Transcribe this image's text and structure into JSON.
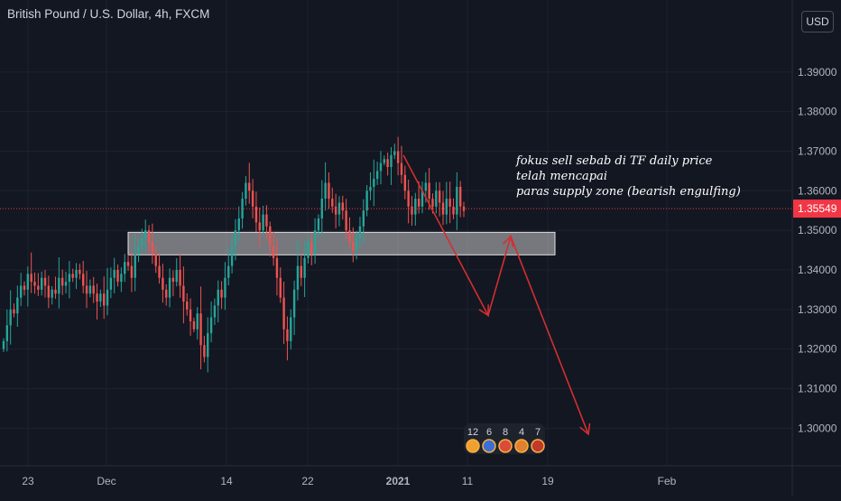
{
  "header": {
    "symbol_title": "British Pound / U.S. Dollar, 4h, FXCM",
    "currency_button": "USD"
  },
  "colors": {
    "background": "#131722",
    "up_candle": "#26a69a",
    "down_candle": "#ef5350",
    "arrow": "#d32f2f",
    "price_tag": "#f23645",
    "grid": "#1e222d"
  },
  "annotation": {
    "lines": [
      "fokus sell sebab di TF daily price",
      "telah mencapai",
      "paras supply zone (bearish engulfing)"
    ]
  },
  "events": {
    "counts": [
      "12",
      "6",
      "8",
      "4",
      "7"
    ]
  },
  "chart_data": {
    "type": "candlestick",
    "symbol": "GBPUSD",
    "timeframe": "4h",
    "y_axis": {
      "ticks": [
        "1.39000",
        "1.38000",
        "1.37000",
        "1.36000",
        "1.35000",
        "1.34000",
        "1.33000",
        "1.32000",
        "1.31000",
        "1.30000"
      ],
      "tick_values": [
        1.39,
        1.38,
        1.37,
        1.36,
        1.35,
        1.34,
        1.33,
        1.32,
        1.31,
        1.3
      ],
      "range": [
        1.2905,
        1.4082
      ]
    },
    "x_axis": {
      "ticks": [
        "23",
        "Dec",
        "14",
        "22",
        "2021",
        "11",
        "19",
        "Feb"
      ]
    },
    "last_price": "1.35549",
    "last_price_value": 1.35549,
    "supply_zone": {
      "low": 1.3438,
      "high": 1.3495
    },
    "projection": [
      1.369,
      1.3285,
      1.3485,
      1.2985
    ],
    "closes": [
      1.322,
      1.326,
      1.33,
      1.329,
      1.333,
      1.336,
      1.335,
      1.339,
      1.337,
      1.336,
      1.335,
      1.338,
      1.336,
      1.333,
      1.335,
      1.334,
      1.338,
      1.336,
      1.337,
      1.339,
      1.338,
      1.34,
      1.339,
      1.336,
      1.334,
      1.336,
      1.334,
      1.332,
      1.334,
      1.331,
      1.335,
      1.338,
      1.34,
      1.337,
      1.339,
      1.342,
      1.341,
      1.338,
      1.344,
      1.346,
      1.348,
      1.35,
      1.347,
      1.344,
      1.341,
      1.338,
      1.335,
      1.333,
      1.338,
      1.337,
      1.34,
      1.336,
      1.332,
      1.33,
      1.327,
      1.325,
      1.329,
      1.321,
      1.318,
      1.324,
      1.328,
      1.331,
      1.335,
      1.333,
      1.338,
      1.341,
      1.346,
      1.35,
      1.353,
      1.358,
      1.362,
      1.36,
      1.356,
      1.352,
      1.35,
      1.354,
      1.351,
      1.346,
      1.343,
      1.338,
      1.333,
      1.325,
      1.322,
      1.328,
      1.335,
      1.341,
      1.338,
      1.343,
      1.347,
      1.344,
      1.35,
      1.353,
      1.358,
      1.362,
      1.358,
      1.356,
      1.354,
      1.357,
      1.355,
      1.35,
      1.347,
      1.345,
      1.348,
      1.351,
      1.355,
      1.36,
      1.361,
      1.363,
      1.365,
      1.367,
      1.368,
      1.366,
      1.369,
      1.37,
      1.367,
      1.364,
      1.36,
      1.356,
      1.354,
      1.358,
      1.356,
      1.36,
      1.362,
      1.358,
      1.356,
      1.36,
      1.357,
      1.354,
      1.358,
      1.356,
      1.354,
      1.361,
      1.356,
      1.3549
    ]
  }
}
